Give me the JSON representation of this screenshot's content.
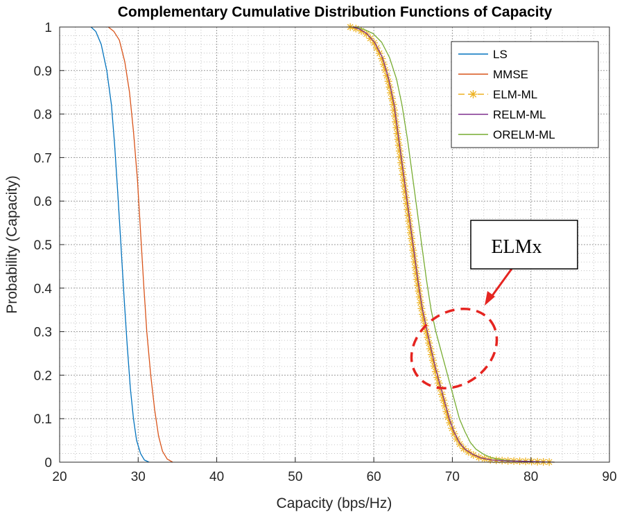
{
  "chart_data": {
    "type": "line",
    "title": "Complementary Cumulative Distribution Functions of Capacity",
    "xlabel": "Capacity (bps/Hz)",
    "ylabel": "Probability (Capacity)",
    "xlim": [
      20,
      90
    ],
    "ylim": [
      0,
      1
    ],
    "xticks": [
      20,
      30,
      40,
      50,
      60,
      70,
      80,
      90
    ],
    "yticks": [
      0,
      0.1,
      0.2,
      0.3,
      0.4,
      0.5,
      0.6,
      0.7,
      0.8,
      0.9,
      1
    ],
    "xtick_labels": [
      "20",
      "30",
      "40",
      "50",
      "60",
      "70",
      "80",
      "90"
    ],
    "ytick_labels": [
      "0",
      "0.1",
      "0.2",
      "0.3",
      "0.4",
      "0.5",
      "0.6",
      "0.7",
      "0.8",
      "0.9",
      "1"
    ],
    "grid": "major and minor dotted",
    "legend_position": "top-right",
    "series": [
      {
        "name": "LS",
        "color": "#0072BD",
        "style": "solid",
        "points": [
          [
            24.0,
            1.0
          ],
          [
            24.6,
            0.99
          ],
          [
            25.3,
            0.96
          ],
          [
            26.0,
            0.9
          ],
          [
            26.6,
            0.82
          ],
          [
            27.0,
            0.73
          ],
          [
            27.4,
            0.62
          ],
          [
            27.8,
            0.5
          ],
          [
            28.2,
            0.38
          ],
          [
            28.6,
            0.27
          ],
          [
            29.0,
            0.17
          ],
          [
            29.4,
            0.1
          ],
          [
            29.8,
            0.05
          ],
          [
            30.3,
            0.02
          ],
          [
            30.8,
            0.005
          ],
          [
            31.4,
            0.0
          ]
        ]
      },
      {
        "name": "MMSE",
        "color": "#D95319",
        "style": "solid",
        "points": [
          [
            26.2,
            1.0
          ],
          [
            26.9,
            0.99
          ],
          [
            27.6,
            0.97
          ],
          [
            28.3,
            0.92
          ],
          [
            28.9,
            0.85
          ],
          [
            29.4,
            0.76
          ],
          [
            29.9,
            0.65
          ],
          [
            30.3,
            0.53
          ],
          [
            30.7,
            0.41
          ],
          [
            31.1,
            0.3
          ],
          [
            31.6,
            0.2
          ],
          [
            32.1,
            0.12
          ],
          [
            32.6,
            0.06
          ],
          [
            33.1,
            0.025
          ],
          [
            33.7,
            0.007
          ],
          [
            34.4,
            0.0
          ]
        ]
      },
      {
        "name": "ELM-ML",
        "color": "#EDB120",
        "style": "dashed-asterisk",
        "points": [
          [
            57.0,
            1.0
          ],
          [
            58.0,
            0.995
          ],
          [
            59.0,
            0.985
          ],
          [
            60.0,
            0.965
          ],
          [
            61.0,
            0.93
          ],
          [
            61.8,
            0.88
          ],
          [
            62.5,
            0.82
          ],
          [
            63.1,
            0.74
          ],
          [
            63.7,
            0.66
          ],
          [
            64.3,
            0.58
          ],
          [
            64.9,
            0.5
          ],
          [
            65.5,
            0.42
          ],
          [
            66.1,
            0.35
          ],
          [
            66.7,
            0.3
          ],
          [
            67.2,
            0.26
          ],
          [
            67.7,
            0.22
          ],
          [
            68.3,
            0.18
          ],
          [
            68.9,
            0.14
          ],
          [
            69.5,
            0.1
          ],
          [
            70.1,
            0.07
          ],
          [
            70.8,
            0.045
          ],
          [
            71.5,
            0.03
          ],
          [
            72.5,
            0.018
          ],
          [
            73.5,
            0.01
          ],
          [
            75.0,
            0.005
          ],
          [
            77.0,
            0.003
          ],
          [
            79.0,
            0.002
          ],
          [
            81.0,
            0.001
          ],
          [
            83.0,
            0.0
          ]
        ]
      },
      {
        "name": "RELM-ML",
        "color": "#7E2F8E",
        "style": "solid",
        "points": [
          [
            57.3,
            1.0
          ],
          [
            58.2,
            0.995
          ],
          [
            59.1,
            0.985
          ],
          [
            60.1,
            0.965
          ],
          [
            61.1,
            0.93
          ],
          [
            61.9,
            0.88
          ],
          [
            62.6,
            0.82
          ],
          [
            63.2,
            0.74
          ],
          [
            63.8,
            0.66
          ],
          [
            64.4,
            0.58
          ],
          [
            65.0,
            0.5
          ],
          [
            65.6,
            0.42
          ],
          [
            66.2,
            0.35
          ],
          [
            66.8,
            0.3
          ],
          [
            67.3,
            0.26
          ],
          [
            67.8,
            0.22
          ],
          [
            68.4,
            0.18
          ],
          [
            69.0,
            0.14
          ],
          [
            69.6,
            0.1
          ],
          [
            70.2,
            0.07
          ],
          [
            70.9,
            0.045
          ],
          [
            71.6,
            0.03
          ],
          [
            72.6,
            0.018
          ],
          [
            73.6,
            0.01
          ],
          [
            75.0,
            0.005
          ],
          [
            77.0,
            0.003
          ],
          [
            79.0,
            0.002
          ],
          [
            81.0,
            0.001
          ],
          [
            83.0,
            0.0
          ]
        ]
      },
      {
        "name": "ORELM-ML",
        "color": "#77AC30",
        "style": "solid",
        "points": [
          [
            57.5,
            1.0
          ],
          [
            58.7,
            0.995
          ],
          [
            59.9,
            0.985
          ],
          [
            61.0,
            0.965
          ],
          [
            62.0,
            0.93
          ],
          [
            62.9,
            0.88
          ],
          [
            63.6,
            0.82
          ],
          [
            64.3,
            0.74
          ],
          [
            64.9,
            0.66
          ],
          [
            65.5,
            0.58
          ],
          [
            66.1,
            0.5
          ],
          [
            66.7,
            0.42
          ],
          [
            67.3,
            0.35
          ],
          [
            67.9,
            0.3
          ],
          [
            68.5,
            0.26
          ],
          [
            69.1,
            0.22
          ],
          [
            69.7,
            0.18
          ],
          [
            70.3,
            0.14
          ],
          [
            70.9,
            0.1
          ],
          [
            71.6,
            0.07
          ],
          [
            72.3,
            0.045
          ],
          [
            73.0,
            0.03
          ],
          [
            74.0,
            0.018
          ],
          [
            75.0,
            0.01
          ],
          [
            76.5,
            0.005
          ],
          [
            78.0,
            0.003
          ],
          [
            79.5,
            0.002
          ],
          [
            81.0,
            0.001
          ],
          [
            83.0,
            0.0
          ]
        ]
      }
    ],
    "annotation": {
      "text": "ELMx",
      "color": "#E52420"
    }
  }
}
